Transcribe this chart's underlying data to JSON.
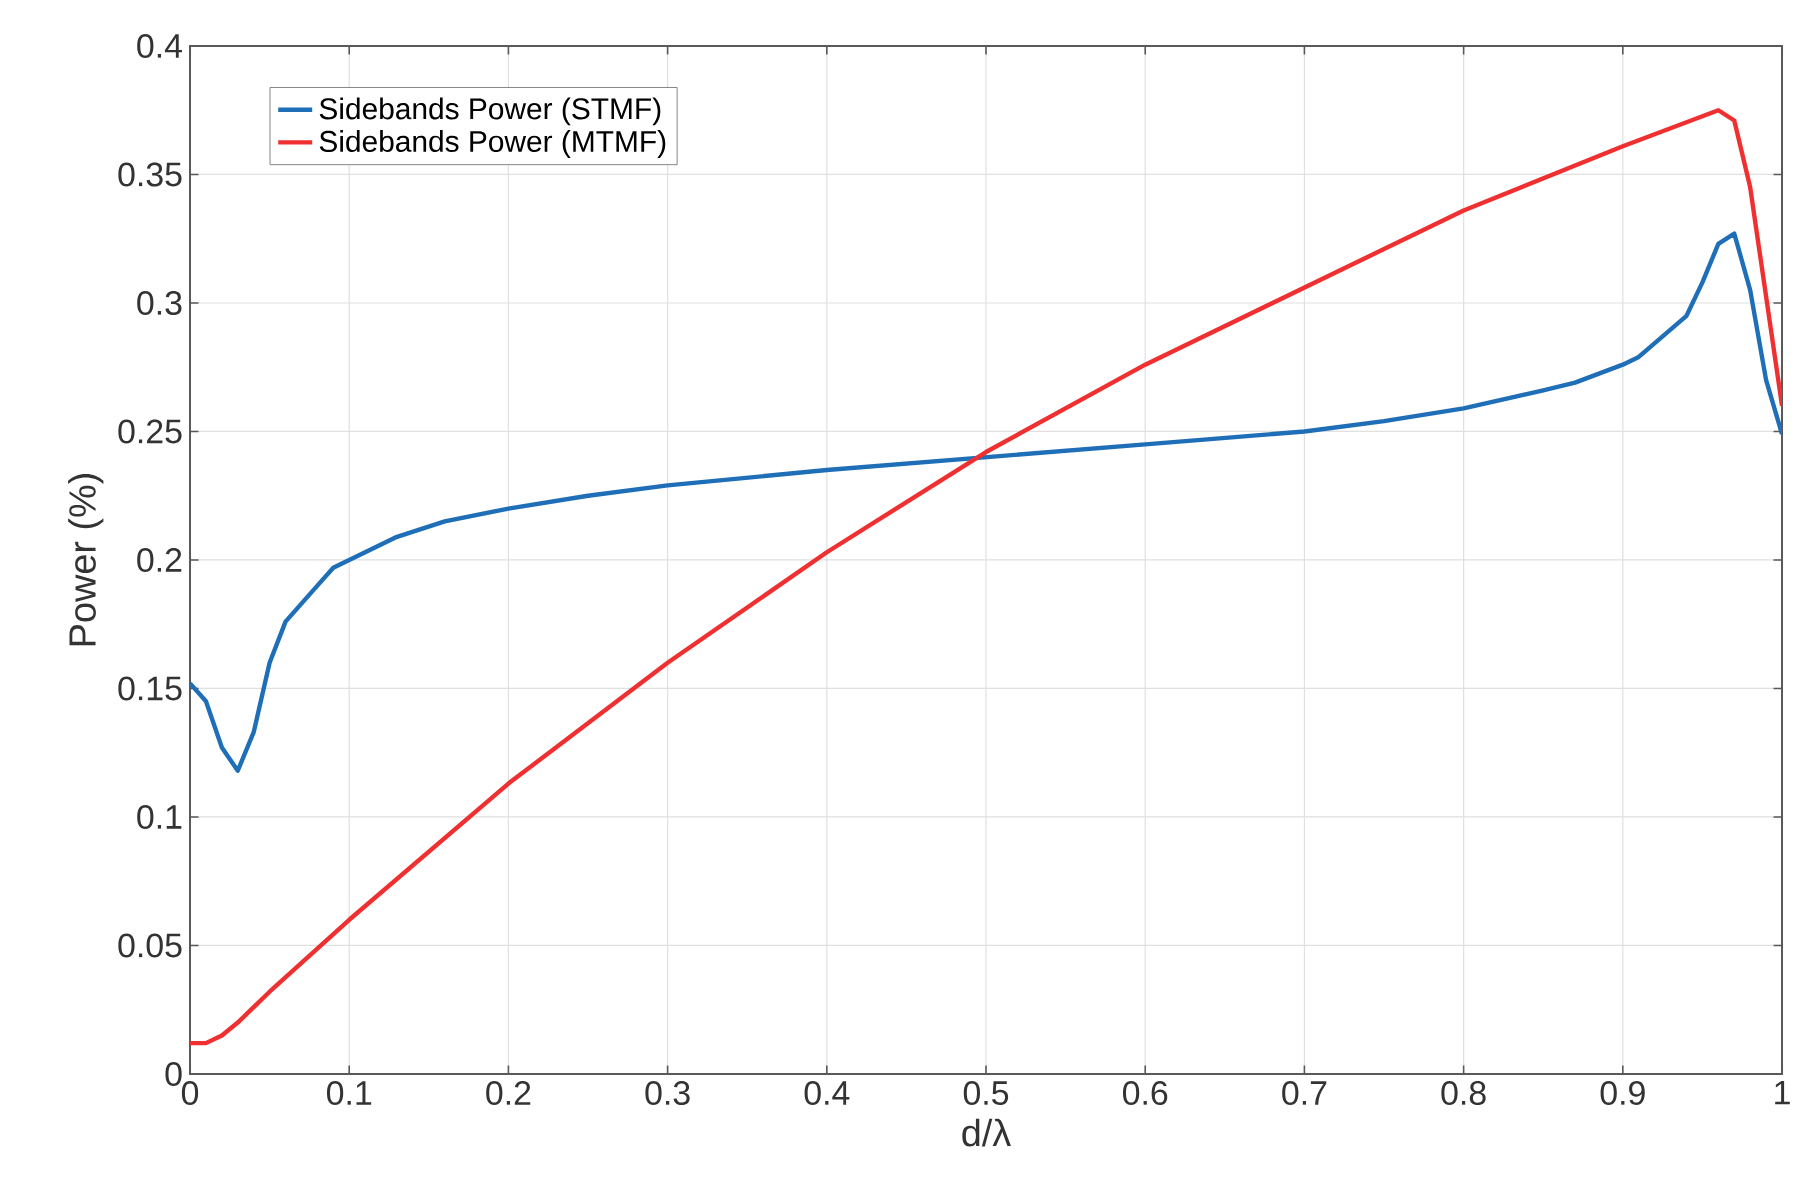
{
  "chart_data": {
    "type": "line",
    "xlabel": "d/λ",
    "ylabel": "Power (%)",
    "xlim": [
      0,
      1
    ],
    "ylim": [
      0,
      0.4
    ],
    "xticks": [
      0,
      0.1,
      0.2,
      0.3,
      0.4,
      0.5,
      0.6,
      0.7,
      0.8,
      0.9,
      1
    ],
    "yticks": [
      0,
      0.05,
      0.1,
      0.15,
      0.2,
      0.25,
      0.3,
      0.35,
      0.4
    ],
    "grid": true,
    "legend": "top left",
    "line_style": "solid",
    "marker": "none",
    "series": [
      {
        "name": "Sidebands Power (STMF)",
        "color": "#1f6fb8",
        "x": [
          0,
          0.01,
          0.02,
          0.03,
          0.04,
          0.05,
          0.06,
          0.07,
          0.08,
          0.09,
          0.1,
          0.11,
          0.13,
          0.16,
          0.2,
          0.25,
          0.3,
          0.4,
          0.5,
          0.6,
          0.7,
          0.75,
          0.8,
          0.85,
          0.87,
          0.9,
          0.91,
          0.94,
          0.95,
          0.96,
          0.97,
          0.98,
          0.99,
          1
        ],
        "values": [
          0.152,
          0.145,
          0.127,
          0.118,
          0.133,
          0.16,
          0.176,
          0.183,
          0.19,
          0.197,
          0.2,
          0.203,
          0.209,
          0.215,
          0.22,
          0.225,
          0.229,
          0.235,
          0.24,
          0.245,
          0.25,
          0.254,
          0.259,
          0.266,
          0.269,
          0.276,
          0.279,
          0.295,
          0.308,
          0.323,
          0.327,
          0.305,
          0.27,
          0.249
        ]
      },
      {
        "name": "Sidebands Power (MTMF)",
        "color": "#f03030",
        "x": [
          0,
          0.01,
          0.02,
          0.03,
          0.05,
          0.1,
          0.2,
          0.3,
          0.4,
          0.5,
          0.6,
          0.7,
          0.8,
          0.9,
          0.96,
          0.97,
          0.98,
          1
        ],
        "values": [
          0.012,
          0.012,
          0.015,
          0.02,
          0.032,
          0.06,
          0.113,
          0.16,
          0.203,
          0.242,
          0.276,
          0.306,
          0.336,
          0.361,
          0.375,
          0.371,
          0.345,
          0.26
        ]
      }
    ]
  }
}
